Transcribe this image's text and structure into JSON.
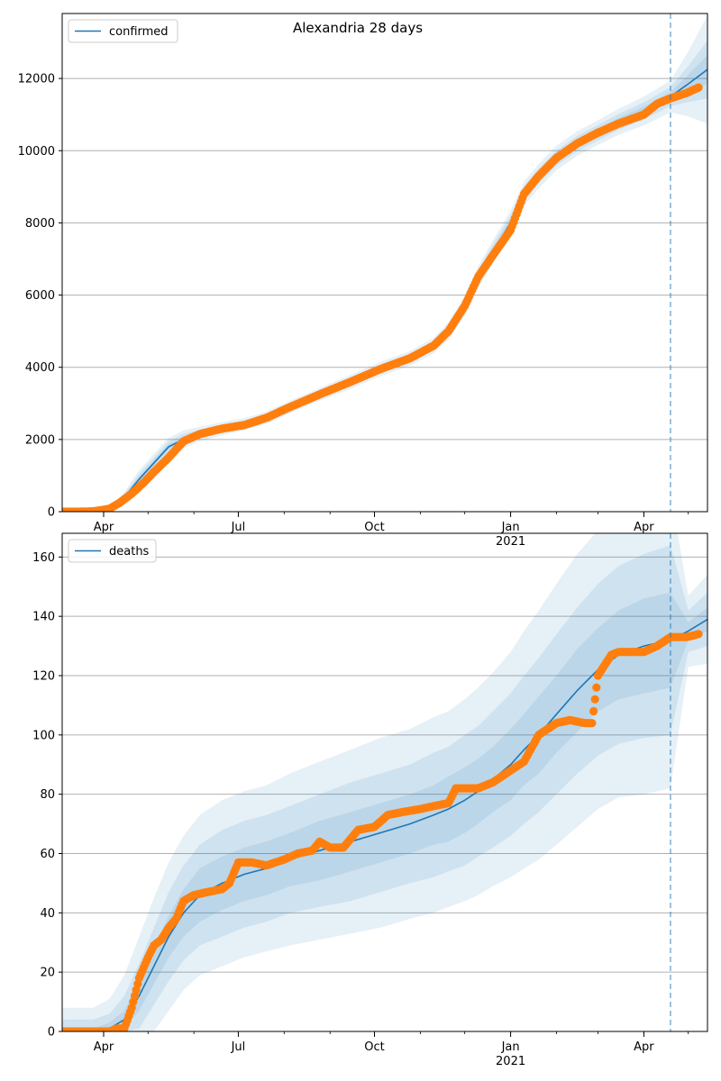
{
  "title": "Alexandria 28 days",
  "colors": {
    "model": "#1f77b4",
    "observed": "#ff7f0e",
    "band": "#1f77b4",
    "grid": "#b0b0b0",
    "vline": "#1f77b4"
  },
  "x_ticks": [
    {
      "date": "2020-04-01",
      "label": "Apr",
      "sublabel": ""
    },
    {
      "date": "2020-07-01",
      "label": "Jul",
      "sublabel": ""
    },
    {
      "date": "2020-10-01",
      "label": "Oct",
      "sublabel": ""
    },
    {
      "date": "2021-01-01",
      "label": "Jan",
      "sublabel": "2021"
    },
    {
      "date": "2021-04-01",
      "label": "Apr",
      "sublabel": ""
    }
  ],
  "chart_data": [
    {
      "type": "line",
      "legend": "confirmed",
      "legend_position": "top-left",
      "grid": "y",
      "xlim": [
        "2020-03-04",
        "2021-05-14"
      ],
      "ylim": [
        0,
        13800
      ],
      "yticks": [
        0,
        2000,
        4000,
        6000,
        8000,
        10000,
        12000
      ],
      "forecast_start": "2021-04-19",
      "model": {
        "name": "confirmed",
        "x": [
          "2020-03-04",
          "2020-03-25",
          "2020-04-05",
          "2020-04-15",
          "2020-04-25",
          "2020-05-05",
          "2020-05-15",
          "2020-05-25",
          "2020-06-05",
          "2020-06-20",
          "2020-07-05",
          "2020-07-20",
          "2020-08-05",
          "2020-08-25",
          "2020-09-15",
          "2020-10-05",
          "2020-10-25",
          "2020-11-10",
          "2020-11-20",
          "2020-12-01",
          "2020-12-10",
          "2020-12-20",
          "2021-01-01",
          "2021-01-10",
          "2021-01-20",
          "2021-02-01",
          "2021-02-15",
          "2021-03-01",
          "2021-03-15",
          "2021-04-01",
          "2021-04-19",
          "2021-05-01",
          "2021-05-14"
        ],
        "y": [
          0,
          0,
          80,
          400,
          900,
          1350,
          1800,
          2000,
          2150,
          2300,
          2420,
          2600,
          2900,
          3250,
          3600,
          3950,
          4250,
          4600,
          5000,
          5700,
          6500,
          7200,
          8000,
          8800,
          9300,
          9800,
          10200,
          10500,
          10800,
          11100,
          11500,
          11850,
          12250
        ],
        "band_half_widths": [
          [
            0,
            0,
            40,
            150,
            250,
            250,
            250,
            250,
            200,
            180,
            170,
            170,
            170,
            180,
            190,
            200,
            200,
            220,
            240,
            280,
            300,
            320,
            340,
            340,
            340,
            340,
            340,
            340,
            360,
            400,
            440,
            900,
            1500
          ],
          [
            0,
            0,
            25,
            90,
            150,
            150,
            150,
            150,
            120,
            110,
            100,
            100,
            100,
            110,
            115,
            120,
            120,
            130,
            150,
            180,
            190,
            200,
            210,
            210,
            210,
            210,
            210,
            210,
            220,
            240,
            260,
            500,
            800
          ],
          [
            0,
            0,
            12,
            40,
            70,
            70,
            70,
            70,
            60,
            55,
            50,
            50,
            50,
            55,
            58,
            60,
            60,
            65,
            75,
            90,
            95,
            100,
            105,
            105,
            105,
            105,
            105,
            105,
            110,
            120,
            130,
            250,
            400
          ]
        ]
      },
      "observed": {
        "x": [
          "2020-03-04",
          "2020-03-15",
          "2020-03-25",
          "2020-04-05",
          "2020-04-12",
          "2020-04-20",
          "2020-04-28",
          "2020-05-05",
          "2020-05-15",
          "2020-05-25",
          "2020-06-05",
          "2020-06-20",
          "2020-07-05",
          "2020-07-20",
          "2020-08-05",
          "2020-08-25",
          "2020-09-15",
          "2020-10-05",
          "2020-10-25",
          "2020-11-10",
          "2020-11-20",
          "2020-12-01",
          "2020-12-10",
          "2020-12-20",
          "2021-01-01",
          "2021-01-10",
          "2021-01-20",
          "2021-02-01",
          "2021-02-15",
          "2021-03-01",
          "2021-03-15",
          "2021-04-01",
          "2021-04-10",
          "2021-04-19",
          "2021-04-30",
          "2021-05-08"
        ],
        "y": [
          0,
          0,
          10,
          80,
          250,
          500,
          800,
          1100,
          1500,
          1950,
          2150,
          2300,
          2400,
          2600,
          2900,
          3250,
          3600,
          3950,
          4250,
          4600,
          5000,
          5700,
          6500,
          7100,
          7800,
          8800,
          9300,
          9800,
          10200,
          10500,
          10750,
          11000,
          11300,
          11450,
          11600,
          11750
        ]
      }
    },
    {
      "type": "line",
      "legend": "deaths",
      "legend_position": "top-left",
      "grid": "y",
      "xlim": [
        "2020-03-04",
        "2021-05-14"
      ],
      "ylim": [
        0,
        168
      ],
      "yticks": [
        0,
        20,
        40,
        60,
        80,
        100,
        120,
        140,
        160
      ],
      "forecast_start": "2021-04-19",
      "model": {
        "name": "deaths",
        "x": [
          "2020-03-04",
          "2020-03-25",
          "2020-04-05",
          "2020-04-15",
          "2020-04-25",
          "2020-05-05",
          "2020-05-15",
          "2020-05-25",
          "2020-06-05",
          "2020-06-20",
          "2020-07-05",
          "2020-07-20",
          "2020-08-05",
          "2020-08-25",
          "2020-09-15",
          "2020-10-05",
          "2020-10-25",
          "2020-11-10",
          "2020-11-20",
          "2020-12-01",
          "2020-12-10",
          "2020-12-20",
          "2021-01-01",
          "2021-01-10",
          "2021-01-20",
          "2021-02-01",
          "2021-02-15",
          "2021-03-01",
          "2021-03-15",
          "2021-04-01",
          "2021-04-19",
          "2021-05-01",
          "2021-05-14"
        ],
        "y": [
          0,
          0,
          1,
          4,
          12,
          22,
          32,
          40,
          46,
          50,
          53,
          55,
          58,
          61,
          64,
          67,
          70,
          73,
          75,
          78,
          81,
          85,
          90,
          95,
          100,
          107,
          115,
          122,
          127,
          130,
          132,
          135,
          139
        ],
        "band_half_widths": [
          [
            8,
            8,
            10,
            15,
            20,
            23,
            25,
            26,
            27,
            28,
            28,
            28,
            29,
            30,
            31,
            32,
            32,
            33,
            33,
            34,
            35,
            36,
            38,
            40,
            42,
            44,
            46,
            47,
            48,
            50,
            50,
            12,
            15
          ],
          [
            4,
            4,
            5,
            8,
            11,
            13,
            15,
            16,
            17,
            18,
            18,
            18,
            18,
            19,
            20,
            20,
            20,
            21,
            21,
            22,
            22,
            23,
            24,
            25,
            26,
            27,
            28,
            29,
            30,
            31,
            32,
            7,
            9
          ],
          [
            1,
            1,
            2,
            3,
            5,
            6,
            7,
            8,
            9,
            9,
            9,
            9,
            9,
            10,
            10,
            10,
            10,
            10,
            11,
            11,
            11,
            11,
            12,
            12,
            13,
            13,
            14,
            14,
            15,
            16,
            16,
            3,
            4
          ]
        ]
      },
      "observed": {
        "x": [
          "2020-03-04",
          "2020-03-20",
          "2020-04-05",
          "2020-04-10",
          "2020-04-15",
          "2020-04-20",
          "2020-04-25",
          "2020-05-01",
          "2020-05-05",
          "2020-05-10",
          "2020-05-15",
          "2020-05-20",
          "2020-05-25",
          "2020-06-01",
          "2020-06-10",
          "2020-06-20",
          "2020-06-25",
          "2020-07-01",
          "2020-07-10",
          "2020-07-20",
          "2020-08-01",
          "2020-08-10",
          "2020-08-20",
          "2020-08-25",
          "2020-09-01",
          "2020-09-10",
          "2020-09-20",
          "2020-10-01",
          "2020-10-10",
          "2020-10-20",
          "2020-11-01",
          "2020-11-10",
          "2020-11-20",
          "2020-11-25",
          "2020-12-01",
          "2020-12-10",
          "2020-12-20",
          "2021-01-01",
          "2021-01-10",
          "2021-01-20",
          "2021-02-01",
          "2021-02-10",
          "2021-02-20",
          "2021-02-25",
          "2021-03-01",
          "2021-03-10",
          "2021-03-15",
          "2021-03-25",
          "2021-04-01",
          "2021-04-10",
          "2021-04-19",
          "2021-04-30",
          "2021-05-08"
        ],
        "y": [
          0,
          0,
          0,
          1,
          1,
          8,
          18,
          25,
          29,
          31,
          35,
          38,
          44,
          46,
          47,
          48,
          50,
          57,
          57,
          56,
          58,
          60,
          61,
          64,
          62,
          62,
          68,
          69,
          73,
          74,
          75,
          76,
          77,
          82,
          82,
          82,
          84,
          88,
          91,
          100,
          104,
          105,
          104,
          104,
          120,
          127,
          128,
          128,
          128,
          130,
          133,
          133,
          134
        ]
      }
    }
  ]
}
